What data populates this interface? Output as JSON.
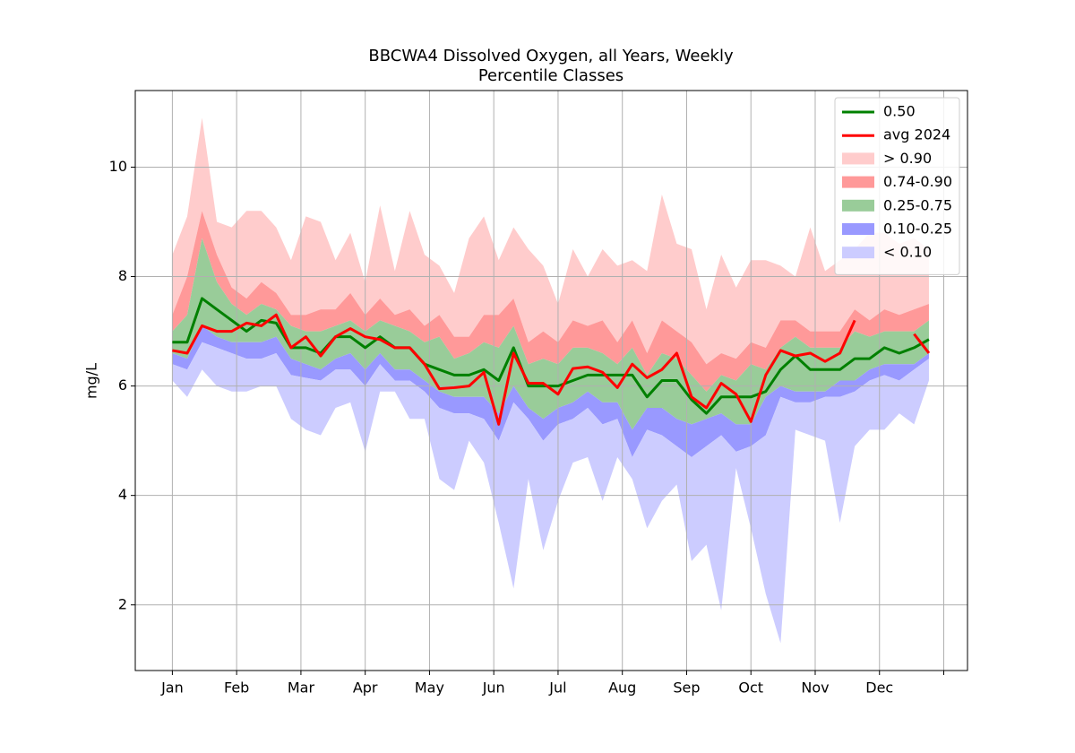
{
  "chart_data": {
    "type": "line",
    "title": [
      "BBCWA4 Dissolved Oxygen, all Years, Weekly",
      "Percentile Classes"
    ],
    "ylabel": "mg/L",
    "x": [
      1,
      2,
      3,
      4,
      5,
      6,
      7,
      8,
      9,
      10,
      11,
      12,
      13,
      14,
      15,
      16,
      17,
      18,
      19,
      20,
      21,
      22,
      23,
      24,
      25,
      26,
      27,
      28,
      29,
      30,
      31,
      32,
      33,
      34,
      35,
      36,
      37,
      38,
      39,
      40,
      41,
      42,
      43,
      44,
      45,
      46,
      47,
      48,
      49,
      50,
      51,
      52
    ],
    "xlim": [
      -1.5,
      54.6
    ],
    "xticks": [
      {
        "value": 1,
        "label": "Jan"
      },
      {
        "value": 5.333,
        "label": "Feb"
      },
      {
        "value": 9.667,
        "label": "Mar"
      },
      {
        "value": 14,
        "label": "Apr"
      },
      {
        "value": 18.333,
        "label": "May"
      },
      {
        "value": 22.667,
        "label": "Jun"
      },
      {
        "value": 27,
        "label": "Jul"
      },
      {
        "value": 31.333,
        "label": "Aug"
      },
      {
        "value": 35.667,
        "label": "Sep"
      },
      {
        "value": 40,
        "label": "Oct"
      },
      {
        "value": 44.333,
        "label": "Nov"
      },
      {
        "value": 48.667,
        "label": "Dec"
      },
      {
        "value": 53,
        "label": null
      }
    ],
    "ylim": [
      0.8,
      11.4
    ],
    "yticks": [
      2,
      4,
      6,
      8,
      10
    ],
    "grid": true,
    "legend": "upper right",
    "series": [
      {
        "name": "0.50",
        "color": "#008000",
        "values": [
          6.8,
          6.8,
          7.6,
          7.4,
          7.2,
          7.0,
          7.2,
          7.15,
          6.7,
          6.7,
          6.6,
          6.9,
          6.9,
          6.7,
          6.9,
          6.7,
          6.7,
          6.4,
          6.3,
          6.2,
          6.2,
          6.3,
          6.1,
          6.7,
          6.0,
          6.0,
          6.0,
          6.1,
          6.2,
          6.2,
          6.2,
          6.2,
          5.8,
          6.1,
          6.1,
          5.75,
          5.5,
          5.8,
          5.8,
          5.8,
          5.9,
          6.3,
          6.55,
          6.3,
          6.3,
          6.3,
          6.5,
          6.5,
          6.7,
          6.6,
          6.7,
          6.85
        ]
      },
      {
        "name": "avg 2024",
        "color": "#ff0000",
        "values": [
          6.65,
          6.6,
          7.1,
          7.0,
          7.0,
          7.15,
          7.1,
          7.3,
          6.7,
          6.9,
          6.55,
          6.9,
          7.05,
          6.9,
          6.85,
          6.7,
          6.7,
          6.4,
          5.95,
          5.97,
          6.0,
          6.25,
          5.3,
          6.6,
          6.05,
          6.05,
          5.85,
          6.32,
          6.35,
          6.25,
          5.97,
          6.4,
          6.15,
          6.3,
          6.6,
          5.8,
          5.6,
          6.05,
          5.85,
          5.35,
          6.2,
          6.65,
          6.55,
          6.6,
          6.45,
          6.6,
          7.2,
          null,
          null,
          null,
          6.95,
          6.6
        ]
      }
    ],
    "bands": [
      {
        "name": "> 0.90",
        "color": "#ffcccc",
        "values": [
          8.4,
          9.1,
          10.9,
          9.0,
          8.9,
          9.2,
          9.2,
          8.9,
          8.3,
          9.1,
          9.0,
          8.3,
          8.8,
          7.9,
          9.3,
          8.1,
          9.2,
          8.4,
          8.2,
          7.7,
          8.7,
          9.1,
          8.3,
          8.9,
          8.5,
          8.2,
          7.5,
          8.5,
          8.0,
          8.5,
          8.2,
          8.3,
          8.1,
          9.5,
          8.6,
          8.5,
          7.4,
          8.4,
          7.8,
          8.3,
          8.3,
          8.2,
          8.0,
          8.9,
          8.1,
          8.3,
          8.5,
          8.8,
          8.8,
          8.6,
          8.7,
          8.5
        ]
      },
      {
        "name": "0.74-0.90",
        "color": "#ff9999",
        "values": [
          7.3,
          8.0,
          9.2,
          8.4,
          7.8,
          7.6,
          7.9,
          7.7,
          7.3,
          7.3,
          7.4,
          7.4,
          7.7,
          7.3,
          7.6,
          7.3,
          7.4,
          7.1,
          7.3,
          6.9,
          6.9,
          7.3,
          7.3,
          7.6,
          6.8,
          7.0,
          6.8,
          7.2,
          7.1,
          7.2,
          6.8,
          7.2,
          6.6,
          7.2,
          7.0,
          6.8,
          6.4,
          6.6,
          6.5,
          6.8,
          6.7,
          7.2,
          7.2,
          7.0,
          7.0,
          7.0,
          7.4,
          7.2,
          7.4,
          7.3,
          7.4,
          7.5
        ]
      },
      {
        "name": "0.25-0.75",
        "color": "#99cc99",
        "values": [
          7.0,
          7.3,
          8.7,
          7.9,
          7.5,
          7.3,
          7.5,
          7.4,
          7.1,
          7.0,
          7.0,
          7.1,
          7.2,
          7.0,
          7.2,
          7.1,
          7.0,
          6.8,
          6.9,
          6.5,
          6.6,
          6.8,
          6.7,
          7.1,
          6.4,
          6.5,
          6.4,
          6.7,
          6.7,
          6.6,
          6.4,
          6.7,
          6.2,
          6.6,
          6.5,
          6.2,
          5.9,
          6.2,
          6.1,
          6.4,
          6.3,
          6.7,
          6.9,
          6.7,
          6.7,
          6.7,
          7.0,
          6.9,
          7.0,
          7.0,
          7.0,
          7.2
        ]
      },
      {
        "name": "0.10-0.25",
        "color": "#9999ff",
        "values": [
          6.6,
          6.5,
          7.1,
          6.9,
          6.8,
          6.8,
          6.8,
          6.9,
          6.5,
          6.4,
          6.3,
          6.5,
          6.6,
          6.3,
          6.6,
          6.3,
          6.3,
          6.1,
          5.9,
          5.8,
          5.8,
          5.8,
          5.5,
          6.0,
          5.6,
          5.4,
          5.6,
          5.7,
          5.9,
          5.7,
          5.7,
          5.2,
          5.6,
          5.6,
          5.4,
          5.3,
          5.4,
          5.5,
          5.3,
          5.3,
          5.8,
          6.0,
          5.9,
          5.9,
          5.9,
          6.1,
          6.1,
          6.3,
          6.4,
          6.4,
          6.4,
          6.6
        ]
      },
      {
        "name": "< 0.10",
        "color": "#ccccff",
        "values": [
          6.4,
          6.3,
          6.8,
          6.7,
          6.6,
          6.5,
          6.5,
          6.6,
          6.2,
          6.15,
          6.1,
          6.3,
          6.3,
          6.0,
          6.4,
          6.1,
          6.1,
          5.9,
          5.6,
          5.5,
          5.5,
          5.4,
          5.0,
          5.7,
          5.4,
          5.0,
          5.3,
          5.4,
          5.6,
          5.3,
          5.4,
          4.7,
          5.2,
          5.1,
          4.9,
          4.7,
          4.9,
          5.1,
          4.8,
          4.9,
          5.1,
          5.8,
          5.7,
          5.7,
          5.8,
          5.8,
          5.9,
          6.1,
          6.2,
          6.1,
          6.3,
          6.5
        ]
      }
    ],
    "band_floor": [
      6.1,
      5.8,
      6.3,
      6.0,
      5.9,
      5.9,
      6.0,
      6.0,
      5.4,
      5.2,
      5.1,
      5.6,
      5.7,
      4.8,
      5.9,
      5.9,
      5.4,
      5.4,
      4.3,
      4.1,
      5.0,
      4.6,
      3.5,
      2.3,
      4.3,
      3.0,
      3.9,
      4.6,
      4.7,
      3.9,
      4.7,
      4.3,
      3.4,
      3.9,
      4.2,
      2.8,
      3.1,
      1.9,
      4.5,
      3.4,
      2.2,
      1.3,
      5.2,
      5.1,
      5.0,
      3.5,
      4.9,
      5.2,
      5.2,
      5.5,
      5.3,
      6.1
    ]
  }
}
